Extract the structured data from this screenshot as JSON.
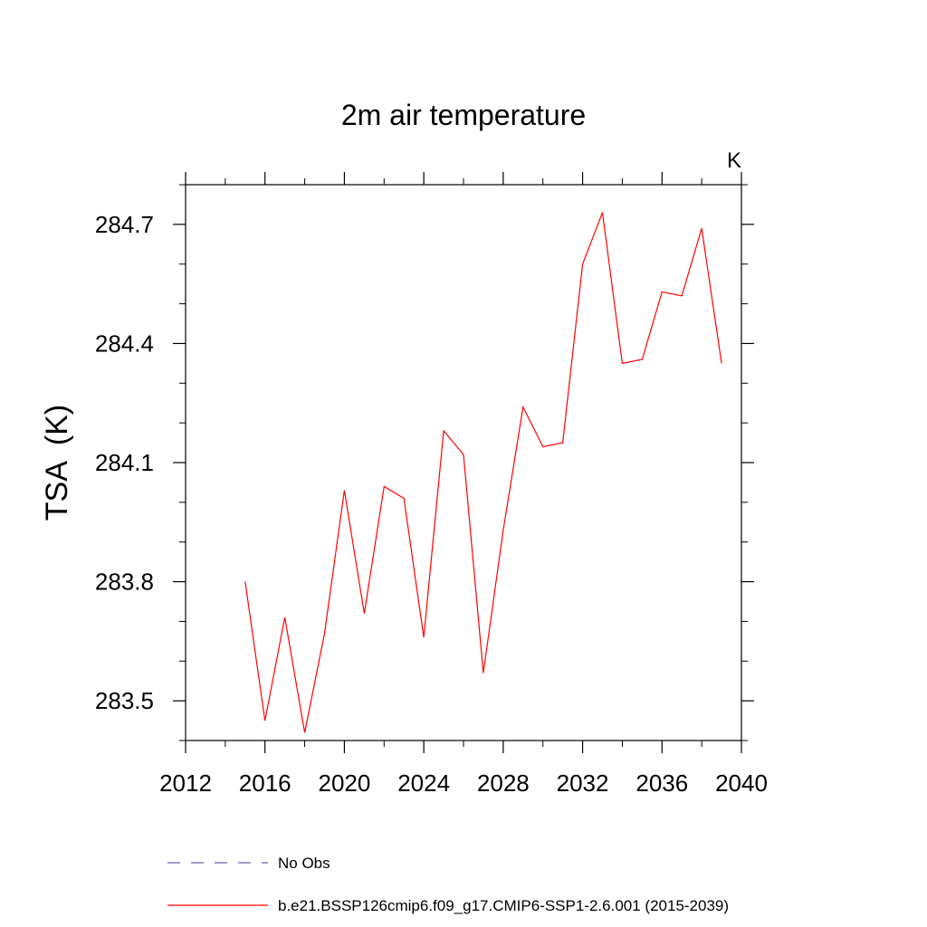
{
  "chart_data": {
    "type": "line",
    "title": "2m air temperature",
    "units": "K",
    "ylabel": "TSA  (K)",
    "xlabel": "",
    "xlim": [
      2012,
      2040
    ],
    "ylim": [
      283.4,
      284.8
    ],
    "xticks": [
      2012,
      2016,
      2020,
      2024,
      2028,
      2032,
      2036,
      2040
    ],
    "xtick_labels": [
      "2012",
      "2016",
      "2020",
      "2024",
      "2028",
      "2032",
      "2036",
      "2040"
    ],
    "yticks": [
      283.5,
      283.8,
      284.1,
      284.4,
      284.7
    ],
    "ytick_labels": [
      "283.5",
      "283.8",
      "284.1",
      "284.4",
      "284.7"
    ],
    "grid": false,
    "legend_position": "bottom",
    "series": [
      {
        "name": "No Obs",
        "color": "#6b5fae",
        "dash": "dashed",
        "x": [],
        "y": []
      },
      {
        "name": "b.e21.BSSP126cmip6.f09_g17.CMIP6-SSP1-2.6.001 (2015-2039)",
        "color": "#ff0000",
        "dash": "solid",
        "x": [
          2015,
          2016,
          2017,
          2018,
          2019,
          2020,
          2021,
          2022,
          2023,
          2024,
          2025,
          2026,
          2027,
          2028,
          2029,
          2030,
          2031,
          2032,
          2033,
          2034,
          2035,
          2036,
          2037,
          2038,
          2039
        ],
        "y": [
          283.8,
          283.45,
          283.71,
          283.42,
          283.67,
          284.03,
          283.72,
          284.04,
          284.01,
          283.66,
          284.18,
          284.12,
          283.57,
          283.93,
          284.24,
          284.14,
          284.15,
          284.6,
          284.73,
          284.35,
          284.36,
          284.53,
          284.52,
          284.69,
          284.35
        ]
      }
    ]
  }
}
